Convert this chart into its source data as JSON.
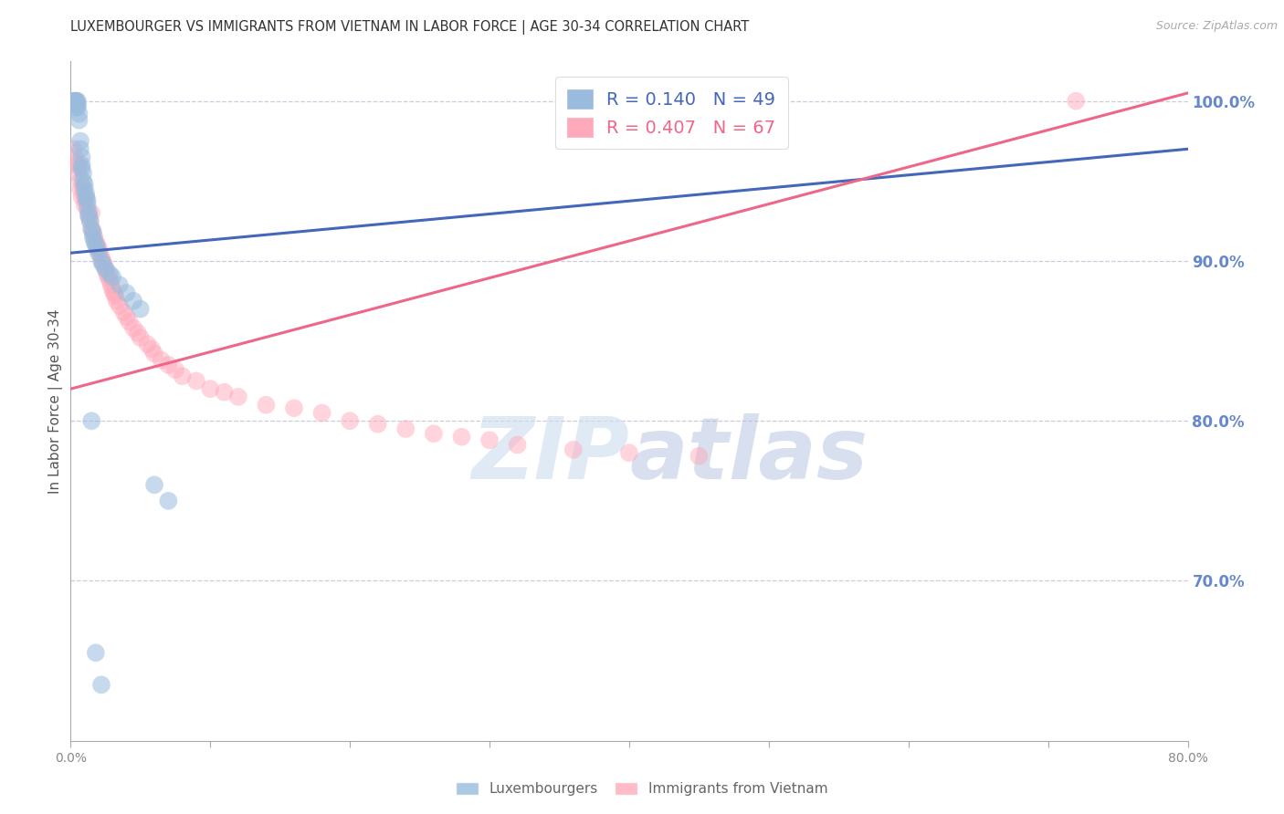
{
  "title": "LUXEMBOURGER VS IMMIGRANTS FROM VIETNAM IN LABOR FORCE | AGE 30-34 CORRELATION CHART",
  "source_text": "Source: ZipAtlas.com",
  "ylabel": "In Labor Force | Age 30-34",
  "right_yticks": [
    "100.0%",
    "90.0%",
    "80.0%",
    "70.0%"
  ],
  "right_ytick_values": [
    1.0,
    0.9,
    0.8,
    0.7
  ],
  "watermark_zip": "ZIP",
  "watermark_atlas": "atlas",
  "legend_r1": "R = 0.140",
  "legend_n1": "N = 49",
  "legend_r2": "R = 0.407",
  "legend_n2": "N = 67",
  "lux_color": "#99BBDD",
  "viet_color": "#FFAABB",
  "lux_line_color": "#4466BB",
  "viet_line_color": "#EE6688",
  "background_color": "#FFFFFF",
  "grid_color": "#CCCCDD",
  "right_tick_color": "#6688CC",
  "title_color": "#333333",
  "xlim": [
    0.0,
    0.8
  ],
  "ylim": [
    0.6,
    1.025
  ],
  "lux_scatter_x": [
    0.002,
    0.003,
    0.003,
    0.004,
    0.004,
    0.004,
    0.004,
    0.005,
    0.005,
    0.005,
    0.006,
    0.006,
    0.007,
    0.007,
    0.008,
    0.008,
    0.008,
    0.009,
    0.009,
    0.01,
    0.01,
    0.011,
    0.011,
    0.012,
    0.012,
    0.013,
    0.013,
    0.014,
    0.015,
    0.016,
    0.016,
    0.017,
    0.018,
    0.019,
    0.02,
    0.022,
    0.023,
    0.025,
    0.028,
    0.03,
    0.035,
    0.04,
    0.045,
    0.05,
    0.06,
    0.07,
    0.015,
    0.018,
    0.022
  ],
  "lux_scatter_y": [
    1.0,
    1.0,
    1.0,
    1.0,
    1.0,
    0.998,
    0.996,
    1.0,
    0.998,
    0.996,
    0.992,
    0.988,
    0.975,
    0.97,
    0.965,
    0.96,
    0.958,
    0.955,
    0.95,
    0.948,
    0.945,
    0.942,
    0.94,
    0.938,
    0.935,
    0.93,
    0.928,
    0.925,
    0.92,
    0.918,
    0.915,
    0.912,
    0.91,
    0.908,
    0.905,
    0.9,
    0.898,
    0.895,
    0.892,
    0.89,
    0.885,
    0.88,
    0.875,
    0.87,
    0.76,
    0.75,
    0.8,
    0.655,
    0.635
  ],
  "viet_scatter_x": [
    0.002,
    0.003,
    0.004,
    0.005,
    0.006,
    0.007,
    0.007,
    0.008,
    0.009,
    0.01,
    0.01,
    0.011,
    0.012,
    0.013,
    0.014,
    0.015,
    0.015,
    0.016,
    0.017,
    0.018,
    0.019,
    0.02,
    0.021,
    0.022,
    0.023,
    0.024,
    0.025,
    0.026,
    0.027,
    0.028,
    0.029,
    0.03,
    0.031,
    0.032,
    0.033,
    0.035,
    0.038,
    0.04,
    0.042,
    0.045,
    0.048,
    0.05,
    0.055,
    0.058,
    0.06,
    0.065,
    0.07,
    0.075,
    0.08,
    0.09,
    0.1,
    0.11,
    0.12,
    0.14,
    0.16,
    0.18,
    0.2,
    0.22,
    0.24,
    0.26,
    0.28,
    0.3,
    0.32,
    0.36,
    0.4,
    0.45,
    0.72
  ],
  "viet_scatter_y": [
    0.97,
    0.965,
    0.96,
    0.955,
    0.96,
    0.95,
    0.945,
    0.94,
    0.945,
    0.94,
    0.935,
    0.938,
    0.932,
    0.928,
    0.925,
    0.93,
    0.92,
    0.918,
    0.915,
    0.912,
    0.91,
    0.908,
    0.905,
    0.902,
    0.9,
    0.898,
    0.895,
    0.892,
    0.89,
    0.888,
    0.885,
    0.882,
    0.88,
    0.878,
    0.875,
    0.872,
    0.868,
    0.865,
    0.862,
    0.858,
    0.855,
    0.852,
    0.848,
    0.845,
    0.842,
    0.838,
    0.835,
    0.832,
    0.828,
    0.825,
    0.82,
    0.818,
    0.815,
    0.81,
    0.808,
    0.805,
    0.8,
    0.798,
    0.795,
    0.792,
    0.79,
    0.788,
    0.785,
    0.782,
    0.78,
    0.778,
    1.0
  ],
  "lux_trendline_x": [
    0.0,
    0.8
  ],
  "lux_trendline_y": [
    0.905,
    0.97
  ],
  "viet_trendline_x": [
    0.0,
    0.8
  ],
  "viet_trendline_y": [
    0.82,
    1.005
  ],
  "xtick_positions": [
    0.0,
    0.1,
    0.2,
    0.3,
    0.4,
    0.5,
    0.6,
    0.7,
    0.8
  ],
  "xtick_labels_show": [
    "0.0%",
    "",
    "",
    "",
    "",
    "",
    "",
    "",
    "80.0%"
  ]
}
